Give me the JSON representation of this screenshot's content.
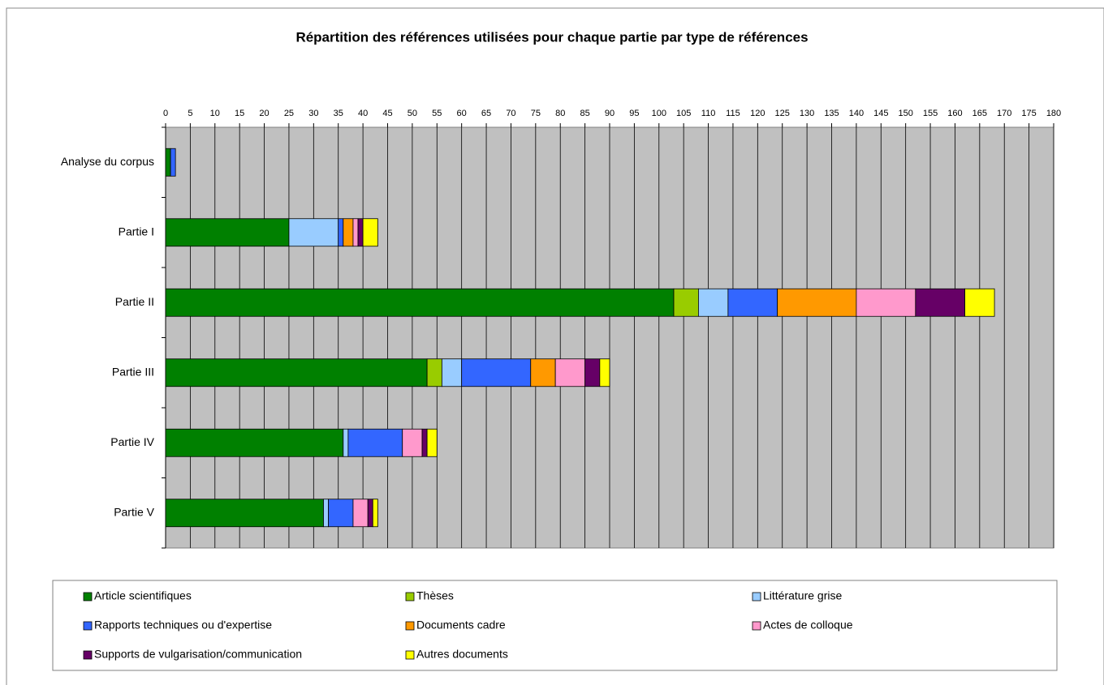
{
  "chart_data": {
    "type": "stacked-barh",
    "title": "Répartition des références utilisées pour chaque partie par type de références",
    "categories": [
      "Analyse du corpus",
      "Partie I",
      "Partie II",
      "Partie III",
      "Partie IV",
      "Partie V"
    ],
    "series": [
      {
        "name": "Article scientifiques",
        "color": "#008000",
        "values": [
          1,
          25,
          103,
          53,
          36,
          32
        ]
      },
      {
        "name": "Thèses",
        "color": "#99cc00",
        "values": [
          0,
          0,
          5,
          3,
          0,
          0
        ]
      },
      {
        "name": "Littérature grise",
        "color": "#99ccff",
        "values": [
          0,
          10,
          6,
          4,
          1,
          1
        ]
      },
      {
        "name": "Rapports techniques ou d'expertise",
        "color": "#3366ff",
        "values": [
          1,
          1,
          10,
          14,
          11,
          5
        ]
      },
      {
        "name": "Documents cadre",
        "color": "#ff9900",
        "values": [
          0,
          2,
          16,
          5,
          0,
          0
        ]
      },
      {
        "name": "Actes de colloque",
        "color": "#ff99cc",
        "values": [
          0,
          1,
          12,
          6,
          4,
          3
        ]
      },
      {
        "name": "Supports de vulgarisation/communication",
        "color": "#660066",
        "values": [
          0,
          1,
          10,
          3,
          1,
          1
        ]
      },
      {
        "name": "Autres documents",
        "color": "#ffff00",
        "values": [
          0,
          3,
          6,
          2,
          2,
          1
        ]
      }
    ],
    "xlim": [
      0,
      180
    ],
    "xticks": [
      0,
      5,
      10,
      15,
      20,
      25,
      30,
      35,
      40,
      45,
      50,
      55,
      60,
      65,
      70,
      75,
      80,
      85,
      90,
      95,
      100,
      105,
      110,
      115,
      120,
      125,
      130,
      135,
      140,
      145,
      150,
      155,
      160,
      165,
      170,
      175,
      180
    ],
    "grid": true,
    "plot_background": "#c0c0c0",
    "legend": "bottom"
  }
}
